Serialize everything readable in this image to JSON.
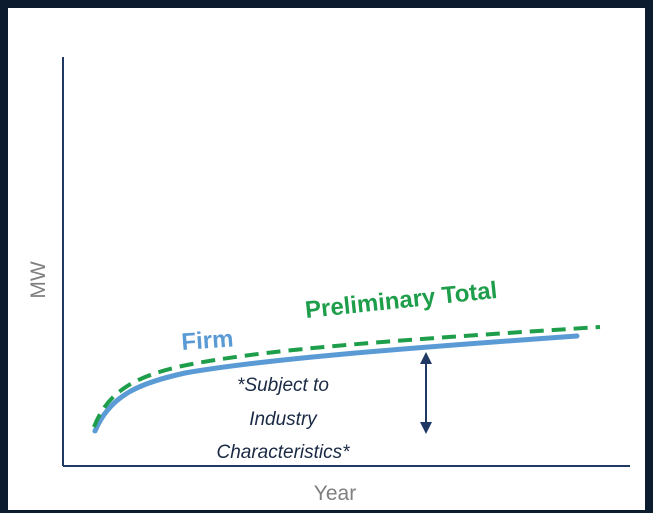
{
  "chart_data": {
    "type": "line",
    "title": "",
    "xlabel": "Year",
    "ylabel": "MW",
    "series": [
      {
        "name": "Firm",
        "style": "solid",
        "color": "#5b9bd5"
      },
      {
        "name": "Preliminary Total",
        "style": "dashed",
        "color": "#1e9e4a"
      }
    ],
    "annotation": {
      "lines": [
        "*Subject to",
        "Industry",
        "Characteristics*"
      ],
      "arrow": "double-headed"
    }
  },
  "colors": {
    "frame": "#0d1b2e",
    "axis": "#1f3864",
    "firm": "#5b9bd5",
    "total": "#1e9e4a",
    "arrow": "#1f3864",
    "axis_title": "#7f7f7f"
  }
}
